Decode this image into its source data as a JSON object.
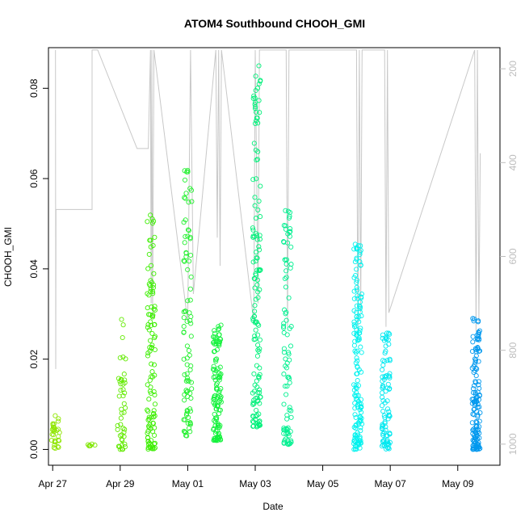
{
  "chart_data": {
    "type": "scatter",
    "title": "ATOM4 Southbound CHOOH_GMI",
    "xlabel": "Date",
    "ylabel": "CHOOH_GMI",
    "x_type": "date",
    "xlim": [
      "2016-04-26T21:00",
      "2016-05-10T06:00"
    ],
    "ylim": [
      -0.0035,
      0.089
    ],
    "y2lim": [
      1045,
      155
    ],
    "x_ticks": [
      {
        "label": "Apr 27",
        "date": "2016-04-27"
      },
      {
        "label": "Apr 29",
        "date": "2016-04-29"
      },
      {
        "label": "May 01",
        "date": "2016-05-01"
      },
      {
        "label": "May 03",
        "date": "2016-05-03"
      },
      {
        "label": "May 05",
        "date": "2016-05-05"
      },
      {
        "label": "May 07",
        "date": "2016-05-07"
      },
      {
        "label": "May 09",
        "date": "2016-05-09"
      }
    ],
    "y_ticks": [
      0.0,
      0.02,
      0.04,
      0.06,
      0.08
    ],
    "y_tick_labels": [
      "0.00",
      "0.02",
      "0.04",
      "0.06",
      "0.08"
    ],
    "y2_ticks": [
      200,
      400,
      600,
      800,
      1000
    ],
    "y2_tick_labels": [
      "200",
      "400",
      "600",
      "800",
      "1000"
    ],
    "grid": false,
    "flights": [
      {
        "date": "2016-04-27T02:00",
        "color": "#8ee600",
        "ymin": 0.0,
        "ymax": 0.0078,
        "n": 30
      },
      {
        "date": "2016-04-28T04:00",
        "color": "#7fe600",
        "ymin": 0.0007,
        "ymax": 0.0014,
        "n": 6
      },
      {
        "date": "2016-04-29T01:00",
        "color": "#62ea00",
        "ymin": 0.0,
        "ymax": 0.029,
        "n": 45
      },
      {
        "date": "2016-04-29T22:00",
        "color": "#3cee00",
        "ymin": 0.0,
        "ymax": 0.0525,
        "n": 110
      },
      {
        "date": "2016-05-01T00:00",
        "color": "#22f02e",
        "ymin": 0.003,
        "ymax": 0.0655,
        "n": 90
      },
      {
        "date": "2016-05-01T21:00",
        "color": "#14f23c",
        "ymin": 0.002,
        "ymax": 0.028,
        "n": 120
      },
      {
        "date": "2016-05-03T01:00",
        "color": "#00f07a",
        "ymin": 0.005,
        "ymax": 0.0855,
        "n": 140
      },
      {
        "date": "2016-05-03T23:00",
        "color": "#00f090",
        "ymin": 0.001,
        "ymax": 0.056,
        "n": 90
      },
      {
        "date": "2016-05-06T01:00",
        "color": "#00f2ee",
        "ymin": 0.0,
        "ymax": 0.0455,
        "n": 150
      },
      {
        "date": "2016-05-06T21:00",
        "color": "#00e8f0",
        "ymin": 0.0,
        "ymax": 0.027,
        "n": 90
      },
      {
        "date": "2016-05-09T13:00",
        "color": "#0098ee",
        "ymin": 0.0,
        "ymax": 0.0295,
        "n": 140
      }
    ],
    "pressure_color": "#c8c8c8",
    "pressure_trace": [
      [
        "2016-04-27T02:00",
        160
      ],
      [
        "2016-04-27T02:10",
        840
      ],
      [
        "2016-04-27T02:20",
        500
      ],
      [
        "2016-04-28T04:00",
        500
      ],
      [
        "2016-04-28T04:00",
        160
      ],
      [
        "2016-04-28T08:00",
        160
      ],
      [
        "2016-04-29T12:00",
        370
      ],
      [
        "2016-04-29T20:00",
        370
      ],
      [
        "2016-04-29T21:30",
        160
      ],
      [
        "2016-04-29T22:00",
        700
      ],
      [
        "2016-04-29T22:30",
        160
      ],
      [
        "2016-04-29T23:00",
        730
      ],
      [
        "2016-04-30T00:00",
        160
      ],
      [
        "2016-05-01T00:00",
        740
      ],
      [
        "2016-05-01T02:00",
        160
      ],
      [
        "2016-05-01T04:00",
        680
      ],
      [
        "2016-05-01T20:00",
        160
      ],
      [
        "2016-05-01T21:00",
        560
      ],
      [
        "2016-05-01T22:00",
        160
      ],
      [
        "2016-05-01T23:00",
        620
      ],
      [
        "2016-05-02T00:00",
        160
      ],
      [
        "2016-05-02T23:00",
        740
      ],
      [
        "2016-05-03T00:00",
        160
      ],
      [
        "2016-05-03T02:00",
        700
      ],
      [
        "2016-05-03T03:00",
        160
      ],
      [
        "2016-05-03T06:00",
        160
      ],
      [
        "2016-05-03T22:00",
        160
      ],
      [
        "2016-05-03T23:00",
        750
      ],
      [
        "2016-05-04T00:00",
        160
      ],
      [
        "2016-05-04T01:00",
        160
      ],
      [
        "2016-05-06T00:00",
        160
      ],
      [
        "2016-05-06T01:00",
        780
      ],
      [
        "2016-05-06T02:00",
        160
      ],
      [
        "2016-05-06T03:00",
        720
      ],
      [
        "2016-05-06T04:00",
        160
      ],
      [
        "2016-05-06T20:00",
        160
      ],
      [
        "2016-05-06T21:00",
        750
      ],
      [
        "2016-05-06T22:00",
        160
      ],
      [
        "2016-05-06T23:00",
        720
      ],
      [
        "2016-05-09T12:00",
        160
      ],
      [
        "2016-05-09T13:00",
        760
      ],
      [
        "2016-05-09T14:00",
        160
      ],
      [
        "2016-05-09T15:00",
        740
      ],
      [
        "2016-05-09T16:00",
        380
      ]
    ]
  }
}
